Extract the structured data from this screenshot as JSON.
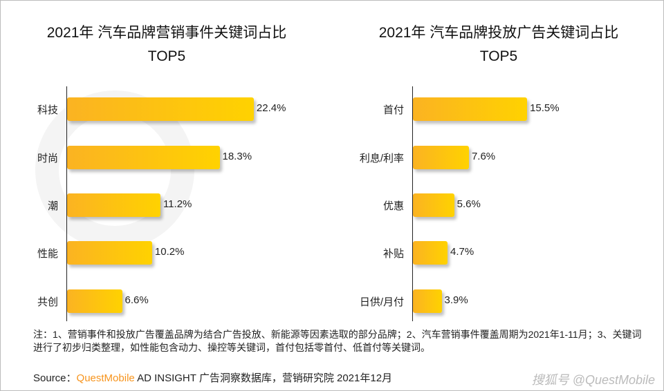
{
  "chart_data": [
    {
      "type": "bar",
      "orientation": "horizontal",
      "title": "2021年 汽车品牌营销事件关键词占比",
      "subtitle": "TOP5",
      "categories": [
        "科技",
        "时尚",
        "潮",
        "性能",
        "共创"
      ],
      "values": [
        22.4,
        18.3,
        11.2,
        10.2,
        6.6
      ],
      "value_labels": [
        "22.4%",
        "18.3%",
        "11.2%",
        "10.2%",
        "6.6%"
      ],
      "unit": "%",
      "xlim": [
        0,
        25
      ],
      "grid": false,
      "color": "#fbc31a"
    },
    {
      "type": "bar",
      "orientation": "horizontal",
      "title": "2021年 汽车品牌投放广告关键词占比",
      "subtitle": "TOP5",
      "categories": [
        "首付",
        "利息/利率",
        "优惠",
        "补贴",
        "日供/月付"
      ],
      "values": [
        15.5,
        7.6,
        5.6,
        4.7,
        3.9
      ],
      "value_labels": [
        "15.5%",
        "7.6%",
        "5.6%",
        "4.7%",
        "3.9%"
      ],
      "unit": "%",
      "xlim": [
        0,
        18
      ],
      "grid": false,
      "color": "#fbc31a"
    }
  ],
  "watermark": "QUESTMOBILE",
  "note": "注：1、营销事件和投放广告覆盖品牌为结合广告投放、新能源等因素选取的部分品牌；2、汽车营销事件覆盖周期为2021年1-11月；3、关键词进行了初步归类整理，如性能包含动力、操控等关键词，首付包括零首付、低首付等关键词。",
  "source": {
    "prefix": "Source：",
    "brand": "QuestMobile",
    "rest": " AD INSIGHT 广告洞察数据库，营销研究院 2021年12月"
  },
  "credit": "搜狐号 @QuestMobile"
}
